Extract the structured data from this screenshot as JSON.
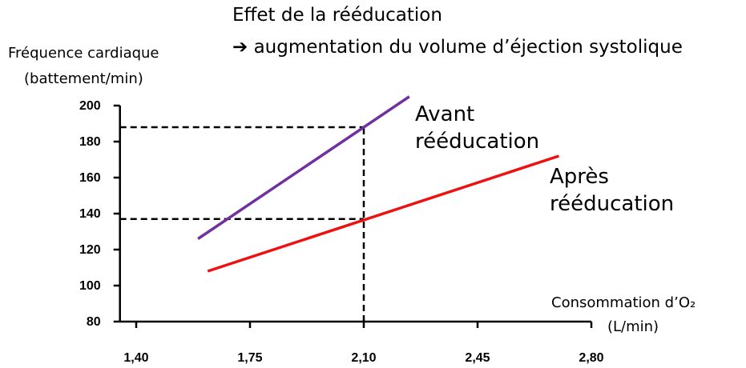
{
  "chart_data": {
    "type": "line",
    "title": [
      "Effet de la rééducation",
      "➔ augmentation du volume d’éjection systolique"
    ],
    "ylabel": [
      "Fréquence cardiaque",
      "(battement/min)"
    ],
    "xlabel": [
      "Consommation d’O₂",
      "(L/min)"
    ],
    "series": [
      {
        "name": "Avant rééducation",
        "color": "#7030a0",
        "x": [
          1.59,
          2.24
        ],
        "values": [
          126,
          205
        ]
      },
      {
        "name": "Après rééducation",
        "color": "#ee1111",
        "x": [
          1.62,
          2.7
        ],
        "values": [
          108,
          172
        ]
      }
    ],
    "reference_lines": {
      "x": 2.1,
      "y": [
        188,
        137
      ]
    },
    "xlim": [
      1.35,
      2.8
    ],
    "xticks": [
      {
        "value": 1.4,
        "label": "1,40"
      },
      {
        "value": 1.75,
        "label": "1,75"
      },
      {
        "value": 2.1,
        "label": "2,10"
      },
      {
        "value": 2.45,
        "label": "2,45"
      },
      {
        "value": 2.8,
        "label": "2,80"
      }
    ],
    "ylim": [
      80,
      200
    ],
    "yticks": [
      80,
      100,
      120,
      140,
      160,
      180,
      200
    ]
  }
}
